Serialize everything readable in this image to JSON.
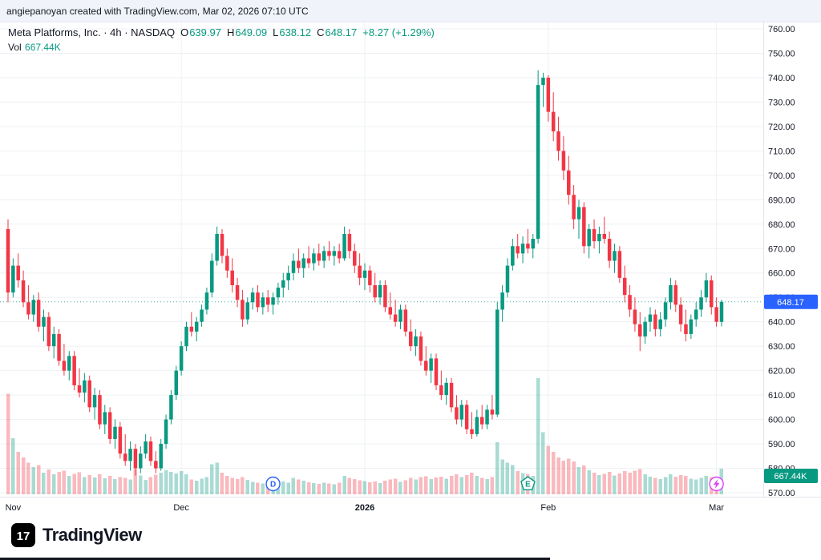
{
  "attribution": {
    "text": "angiepanoyan created with TradingView.com, Mar 02, 2026 07:10 UTC"
  },
  "legend": {
    "title": "Meta Platforms, Inc. · 4h · NASDAQ",
    "o_label": "O",
    "o": "639.97",
    "h_label": "H",
    "h": "649.09",
    "l_label": "L",
    "l": "638.12",
    "c_label": "C",
    "c": "648.17",
    "change": "+8.27 (+1.29%)",
    "vol_label": "Vol",
    "vol_value": "667.44K"
  },
  "price_badge": {
    "text": "648.17",
    "price": 648.17
  },
  "volume_badge": {
    "text": "667.44K"
  },
  "footer": {
    "brand": "TradingView",
    "logo_glyph": "17"
  },
  "colors": {
    "up": "#089981",
    "down": "#f23645",
    "vol_up": "rgba(8,153,129,0.35)",
    "vol_down": "rgba(242,54,69,0.35)",
    "badge_price": "#2962ff",
    "badge_volume": "#089981",
    "grid": "#eef0f3",
    "axis_line": "#e0e3eb",
    "text": "#131722"
  },
  "chart_data": {
    "type": "candlestick",
    "symbol": "Meta Platforms, Inc.",
    "exchange": "NASDAQ",
    "interval": "4h",
    "legend_position": "top-left",
    "grid": true,
    "last_bar": {
      "open": 639.97,
      "high": 649.09,
      "low": 638.12,
      "close": 648.17,
      "change": 8.27,
      "change_pct": 1.29,
      "volume_k": 667.44
    },
    "price_axis": {
      "min": 570,
      "max": 760,
      "step": 10,
      "labels": [
        "760.00",
        "750.00",
        "740.00",
        "730.00",
        "720.00",
        "710.00",
        "700.00",
        "690.00",
        "680.00",
        "670.00",
        "660.00",
        "650.00",
        "640.00",
        "630.00",
        "620.00",
        "610.00",
        "600.00",
        "590.00",
        "580.00",
        "570.00"
      ]
    },
    "time_ticks": [
      {
        "label": "Nov",
        "index": 1
      },
      {
        "label": "Dec",
        "index": 34
      },
      {
        "label": "2026",
        "index": 70,
        "bold": true
      },
      {
        "label": "Feb",
        "index": 106
      },
      {
        "label": "Mar",
        "index": 139
      }
    ],
    "markers": [
      {
        "type": "dividend",
        "label": "D",
        "index": 52,
        "color": "#2962ff"
      },
      {
        "type": "earnings",
        "label": "E",
        "index": 102,
        "color": "#089981"
      },
      {
        "type": "flash",
        "label": "",
        "index": 139,
        "color": "#e040fb"
      }
    ],
    "volume_unit": "K",
    "candles_format": [
      "open",
      "high",
      "low",
      "close",
      "volume_k"
    ],
    "candles": [
      [
        678,
        682,
        648,
        652,
        2600
      ],
      [
        652,
        666,
        650,
        663,
        1450
      ],
      [
        663,
        668,
        654,
        657,
        1100
      ],
      [
        657,
        661,
        646,
        648,
        950
      ],
      [
        648,
        655,
        641,
        643,
        820
      ],
      [
        643,
        651,
        640,
        649,
        700
      ],
      [
        649,
        652,
        636,
        638,
        760
      ],
      [
        638,
        645,
        632,
        642,
        560
      ],
      [
        642,
        644,
        628,
        630,
        640
      ],
      [
        630,
        638,
        625,
        635,
        520
      ],
      [
        635,
        637,
        622,
        624,
        580
      ],
      [
        624,
        631,
        618,
        620,
        610
      ],
      [
        620,
        628,
        616,
        626,
        480
      ],
      [
        626,
        628,
        612,
        614,
        530
      ],
      [
        614,
        621,
        609,
        611,
        570
      ],
      [
        611,
        619,
        607,
        616,
        450
      ],
      [
        616,
        618,
        603,
        605,
        500
      ],
      [
        605,
        613,
        600,
        610,
        430
      ],
      [
        610,
        612,
        596,
        598,
        520
      ],
      [
        598,
        606,
        594,
        603,
        410
      ],
      [
        603,
        605,
        590,
        592,
        480
      ],
      [
        592,
        600,
        588,
        597,
        390
      ],
      [
        597,
        599,
        584,
        586,
        450
      ],
      [
        586,
        594,
        581,
        583,
        420
      ],
      [
        583,
        591,
        579,
        588,
        380
      ],
      [
        588,
        590,
        577,
        580,
        650
      ],
      [
        580,
        589,
        578,
        586,
        490
      ],
      [
        586,
        594,
        584,
        591,
        370
      ],
      [
        591,
        593,
        581,
        583,
        440
      ],
      [
        583,
        587,
        578,
        580,
        510
      ],
      [
        580,
        592,
        579,
        590,
        560
      ],
      [
        590,
        602,
        588,
        600,
        620
      ],
      [
        600,
        612,
        598,
        610,
        580
      ],
      [
        610,
        622,
        608,
        620,
        540
      ],
      [
        620,
        632,
        618,
        630,
        600
      ],
      [
        630,
        640,
        628,
        638,
        520
      ],
      [
        638,
        644,
        634,
        636,
        380
      ],
      [
        636,
        642,
        632,
        640,
        350
      ],
      [
        640,
        647,
        638,
        645,
        400
      ],
      [
        645,
        654,
        643,
        652,
        450
      ],
      [
        652,
        668,
        650,
        665,
        780
      ],
      [
        665,
        679,
        663,
        676,
        820
      ],
      [
        676,
        678,
        664,
        667,
        560
      ],
      [
        667,
        670,
        658,
        661,
        480
      ],
      [
        661,
        666,
        652,
        655,
        420
      ],
      [
        655,
        658,
        646,
        649,
        390
      ],
      [
        649,
        653,
        638,
        641,
        440
      ],
      [
        641,
        650,
        639,
        648,
        370
      ],
      [
        648,
        654,
        645,
        652,
        320
      ],
      [
        652,
        655,
        644,
        646,
        300
      ],
      [
        646,
        652,
        643,
        650,
        280
      ],
      [
        650,
        653,
        644,
        647,
        260
      ],
      [
        647,
        652,
        643,
        650,
        290
      ],
      [
        650,
        656,
        647,
        654,
        310
      ],
      [
        654,
        660,
        650,
        657,
        330
      ],
      [
        657,
        663,
        653,
        660,
        300
      ],
      [
        660,
        668,
        657,
        665,
        420
      ],
      [
        665,
        670,
        660,
        662,
        380
      ],
      [
        662,
        668,
        658,
        666,
        350
      ],
      [
        666,
        671,
        662,
        664,
        310
      ],
      [
        664,
        670,
        661,
        668,
        290
      ],
      [
        668,
        672,
        663,
        665,
        270
      ],
      [
        665,
        671,
        662,
        669,
        300
      ],
      [
        669,
        673,
        665,
        667,
        280
      ],
      [
        667,
        671,
        663,
        669,
        260
      ],
      [
        669,
        672,
        664,
        666,
        300
      ],
      [
        666,
        679,
        665,
        676,
        480
      ],
      [
        676,
        678,
        666,
        669,
        420
      ],
      [
        669,
        672,
        660,
        663,
        390
      ],
      [
        663,
        668,
        655,
        658,
        360
      ],
      [
        658,
        664,
        653,
        661,
        340
      ],
      [
        661,
        663,
        652,
        655,
        310
      ],
      [
        655,
        660,
        648,
        650,
        330
      ],
      [
        650,
        657,
        647,
        655,
        290
      ],
      [
        655,
        657,
        644,
        646,
        350
      ],
      [
        646,
        652,
        641,
        643,
        380
      ],
      [
        643,
        649,
        638,
        640,
        400
      ],
      [
        640,
        647,
        637,
        645,
        320
      ],
      [
        645,
        647,
        634,
        636,
        360
      ],
      [
        636,
        641,
        628,
        630,
        420
      ],
      [
        630,
        637,
        626,
        634,
        380
      ],
      [
        634,
        636,
        622,
        624,
        440
      ],
      [
        624,
        630,
        618,
        620,
        470
      ],
      [
        620,
        627,
        615,
        625,
        390
      ],
      [
        625,
        627,
        612,
        614,
        430
      ],
      [
        614,
        620,
        608,
        610,
        460
      ],
      [
        610,
        617,
        606,
        615,
        400
      ],
      [
        615,
        617,
        603,
        605,
        480
      ],
      [
        605,
        610,
        598,
        600,
        520
      ],
      [
        600,
        608,
        597,
        606,
        450
      ],
      [
        606,
        608,
        594,
        596,
        500
      ],
      [
        596,
        603,
        592,
        594,
        560
      ],
      [
        594,
        604,
        593,
        601,
        480
      ],
      [
        601,
        606,
        596,
        598,
        420
      ],
      [
        598,
        606,
        596,
        604,
        390
      ],
      [
        604,
        610,
        600,
        602,
        450
      ],
      [
        602,
        648,
        601,
        645,
        1350
      ],
      [
        645,
        655,
        640,
        652,
        900
      ],
      [
        652,
        666,
        650,
        663,
        820
      ],
      [
        663,
        674,
        661,
        671,
        760
      ],
      [
        671,
        676,
        666,
        668,
        600
      ],
      [
        668,
        675,
        664,
        672,
        550
      ],
      [
        672,
        678,
        668,
        670,
        520
      ],
      [
        670,
        676,
        666,
        674,
        480
      ],
      [
        674,
        743,
        672,
        737,
        3000
      ],
      [
        737,
        742,
        728,
        740,
        1600
      ],
      [
        740,
        741,
        722,
        726,
        1250
      ],
      [
        726,
        734,
        714,
        718,
        1100
      ],
      [
        718,
        724,
        706,
        710,
        950
      ],
      [
        710,
        716,
        698,
        702,
        870
      ],
      [
        702,
        708,
        688,
        692,
        920
      ],
      [
        692,
        696,
        678,
        682,
        850
      ],
      [
        682,
        690,
        674,
        687,
        700
      ],
      [
        687,
        689,
        668,
        671,
        750
      ],
      [
        671,
        680,
        666,
        678,
        620
      ],
      [
        678,
        682,
        670,
        673,
        560
      ],
      [
        673,
        679,
        668,
        676,
        500
      ],
      [
        676,
        683,
        672,
        674,
        530
      ],
      [
        674,
        677,
        662,
        665,
        580
      ],
      [
        665,
        672,
        660,
        669,
        490
      ],
      [
        669,
        671,
        656,
        658,
        540
      ],
      [
        658,
        663,
        648,
        651,
        600
      ],
      [
        651,
        655,
        642,
        645,
        560
      ],
      [
        645,
        650,
        636,
        639,
        610
      ],
      [
        639,
        644,
        628,
        634,
        650
      ],
      [
        634,
        642,
        631,
        640,
        520
      ],
      [
        640,
        646,
        636,
        643,
        460
      ],
      [
        643,
        645,
        634,
        637,
        420
      ],
      [
        637,
        644,
        634,
        641,
        390
      ],
      [
        641,
        650,
        638,
        648,
        440
      ],
      [
        648,
        658,
        645,
        655,
        520
      ],
      [
        655,
        657,
        644,
        647,
        460
      ],
      [
        647,
        650,
        636,
        639,
        500
      ],
      [
        639,
        645,
        632,
        635,
        480
      ],
      [
        635,
        643,
        633,
        641,
        400
      ],
      [
        641,
        648,
        638,
        645,
        380
      ],
      [
        645,
        653,
        642,
        650,
        420
      ],
      [
        650,
        660,
        648,
        657,
        480
      ],
      [
        657,
        659,
        643,
        646,
        440
      ],
      [
        646,
        650,
        638,
        640,
        410
      ],
      [
        639.97,
        649.09,
        638.12,
        648.17,
        667
      ]
    ]
  }
}
